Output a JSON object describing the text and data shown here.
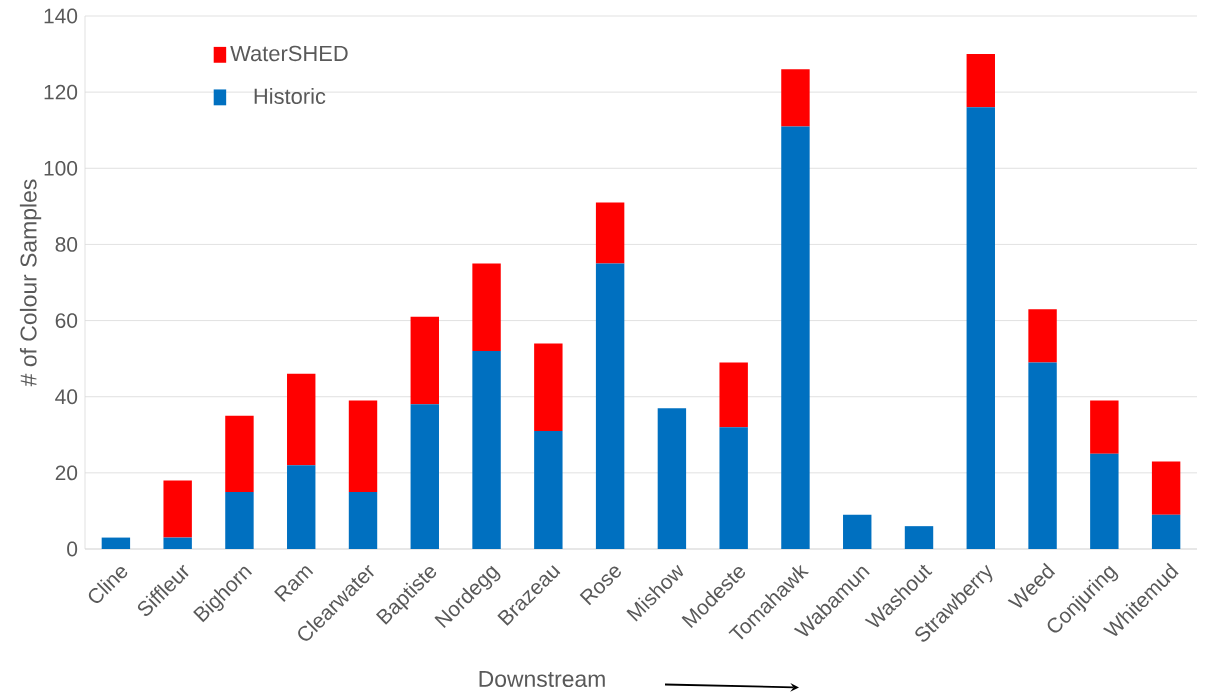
{
  "chart_data": {
    "type": "bar",
    "stacked": true,
    "ylabel": "# of Colour Samples",
    "xlabel": "Downstream",
    "categories": [
      "Cline",
      "Siffleur",
      "Bighorn",
      "Ram",
      "Clearwater",
      "Baptiste",
      "Nordegg",
      "Brazeau",
      "Rose",
      "Mishow",
      "Modeste",
      "Tomahawk",
      "Wabamun",
      "Washout",
      "Strawberry",
      "Weed",
      "Conjuring",
      "Whitemud"
    ],
    "series": [
      {
        "name": "Historic",
        "color": "#0070c0",
        "values": [
          3,
          3,
          15,
          22,
          15,
          38,
          52,
          31,
          75,
          37,
          32,
          111,
          9,
          6,
          116,
          49,
          25,
          9
        ]
      },
      {
        "name": "WaterSHED",
        "color": "#ff0000",
        "values": [
          0,
          15,
          20,
          24,
          24,
          23,
          23,
          23,
          16,
          0,
          17,
          15,
          0,
          0,
          14,
          14,
          14,
          14
        ]
      }
    ],
    "ylim": [
      0,
      140
    ],
    "yticks": [
      0,
      20,
      40,
      60,
      80,
      100,
      120,
      140
    ],
    "grid": "y",
    "legend": "top left"
  }
}
